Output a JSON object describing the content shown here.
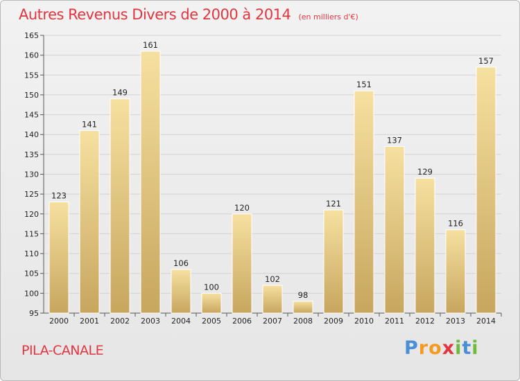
{
  "header": {
    "title": "Autres Revenus Divers de 2000 à 2014",
    "subtitle": "(en milliers d'€)"
  },
  "footer": {
    "location": "PILA-CANALE",
    "logo": "Proxiti",
    "logo_letters": [
      {
        "char": "P",
        "color": "#4a8fd6"
      },
      {
        "char": "r",
        "color": "#f39a1f"
      },
      {
        "char": "o",
        "color": "#f39a1f"
      },
      {
        "char": "x",
        "color": "#e2353f"
      },
      {
        "char": "i",
        "color": "#6dbb3a"
      },
      {
        "char": "t",
        "color": "#4a8fd6"
      },
      {
        "char": "i",
        "color": "#6dbb3a"
      }
    ]
  },
  "colors": {
    "title": "#e2353f",
    "bar_top": "#f6e0a0",
    "bar_bottom": "#c7a65e",
    "grid": "#d2d2d2",
    "axis": "#555555"
  },
  "chart_data": {
    "type": "bar",
    "categories": [
      "2000",
      "2001",
      "2002",
      "2003",
      "2004",
      "2005",
      "2006",
      "2007",
      "2008",
      "2009",
      "2010",
      "2011",
      "2012",
      "2013",
      "2014"
    ],
    "values": [
      123,
      141,
      149,
      161,
      106,
      100,
      120,
      102,
      98,
      121,
      151,
      137,
      129,
      116,
      157
    ],
    "ylim": [
      95,
      165
    ],
    "yticks": [
      95,
      100,
      105,
      110,
      115,
      120,
      125,
      130,
      135,
      140,
      145,
      150,
      155,
      160,
      165
    ],
    "grid": true,
    "title": "Autres Revenus Divers de 2000 à 2014",
    "xlabel": "",
    "ylabel": ""
  }
}
